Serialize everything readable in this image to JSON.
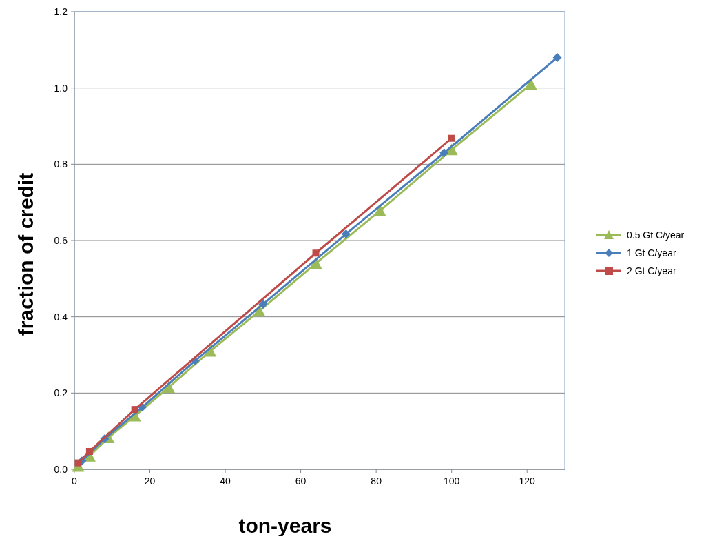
{
  "chart_data": {
    "type": "line",
    "xlabel": "ton-years",
    "ylabel": "fraction of credit",
    "xlim": [
      0,
      130
    ],
    "xticks": [
      0,
      20,
      40,
      60,
      80,
      100,
      120
    ],
    "ylim": [
      0,
      1.2
    ],
    "yticks": [
      {
        "value": 0,
        "label": "0.0"
      },
      {
        "value": 0.2,
        "label": "0.2"
      },
      {
        "value": 0.4,
        "label": "0.4"
      },
      {
        "value": 0.6,
        "label": "0.6"
      },
      {
        "value": 0.8,
        "label": "0.8"
      },
      {
        "value": 1,
        "label": "1.0"
      },
      {
        "value": 1.2,
        "label": "1.2"
      }
    ],
    "grid": "y",
    "legend": "right",
    "series": [
      {
        "name": "0.5 Gt C/year",
        "color": "#9bbb59",
        "marker": "triangle",
        "x": [
          1,
          4,
          9,
          16,
          25,
          36,
          49,
          64,
          81,
          100,
          121
        ],
        "values": [
          0.008,
          0.035,
          0.083,
          0.14,
          0.215,
          0.31,
          0.415,
          0.54,
          0.678,
          0.838,
          1.01
        ]
      },
      {
        "name": "1 Gt C/year",
        "color": "#4a7ebb",
        "marker": "diamond",
        "x": [
          2,
          8,
          18,
          32,
          50,
          72,
          98,
          128
        ],
        "values": [
          0.022,
          0.08,
          0.163,
          0.285,
          0.433,
          0.617,
          0.83,
          1.08
        ]
      },
      {
        "name": "2 Gt C/year",
        "color": "#be4b48",
        "marker": "square",
        "x": [
          1,
          4,
          16,
          64,
          100
        ],
        "values": [
          0.017,
          0.047,
          0.157,
          0.567,
          0.868
        ]
      }
    ]
  }
}
